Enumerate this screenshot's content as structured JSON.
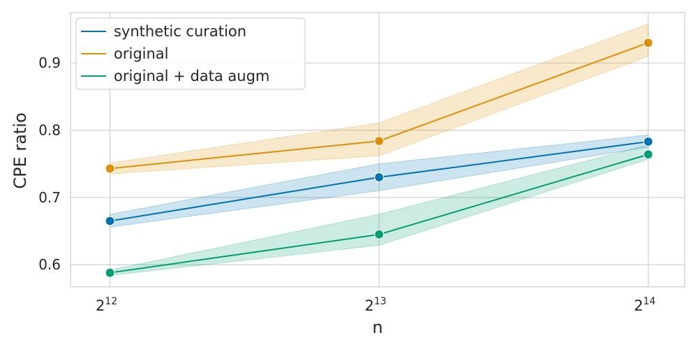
{
  "chart_data": {
    "type": "line",
    "xlabel": "n",
    "ylabel": "CPE ratio",
    "x": [
      4096,
      8192,
      16384
    ],
    "x_scale": "log2",
    "xlim": [
      3700,
      18000
    ],
    "ylim": [
      0.567,
      0.975
    ],
    "x_ticks": [
      {
        "value": 4096,
        "base": "2",
        "exp": "12"
      },
      {
        "value": 8192,
        "base": "2",
        "exp": "13"
      },
      {
        "value": 16384,
        "base": "2",
        "exp": "14"
      }
    ],
    "y_ticks": [
      {
        "value": 0.6,
        "label": "0.6"
      },
      {
        "value": 0.7,
        "label": "0.7"
      },
      {
        "value": 0.8,
        "label": "0.8"
      },
      {
        "value": 0.9,
        "label": "0.9"
      }
    ],
    "grid": true,
    "legend_position": "top-left",
    "series": [
      {
        "name": "synthetic curation",
        "color": "#0173b2",
        "values": [
          0.665,
          0.73,
          0.783
        ],
        "ci_lower": [
          0.656,
          0.71,
          0.775
        ],
        "ci_upper": [
          0.675,
          0.75,
          0.793
        ]
      },
      {
        "name": "original",
        "color": "#de8f05",
        "values": [
          0.743,
          0.784,
          0.93
        ],
        "ci_lower": [
          0.735,
          0.762,
          0.91
        ],
        "ci_upper": [
          0.751,
          0.811,
          0.958
        ]
      },
      {
        "name": "original + data augm",
        "color": "#029e73",
        "values": [
          0.588,
          0.645,
          0.764
        ],
        "ci_lower": [
          0.584,
          0.629,
          0.757
        ],
        "ci_upper": [
          0.592,
          0.675,
          0.778
        ]
      }
    ]
  }
}
